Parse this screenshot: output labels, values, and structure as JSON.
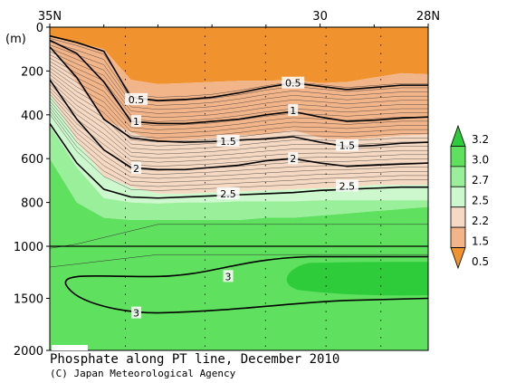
{
  "chart_data": {
    "type": "contour",
    "title": "Phosphate along PT line, December 2010",
    "credit": "(C) Japan Meteorological Agency",
    "y_unit": "(m)",
    "x_ticks": [
      {
        "label": "35N",
        "lat": 35
      },
      {
        "label": "30",
        "lat": 30
      },
      {
        "label": "28N",
        "lat": 28
      }
    ],
    "xlim": [
      35,
      28
    ],
    "y_ticks": [
      0,
      200,
      400,
      600,
      800,
      1000,
      1500,
      2000
    ],
    "ylim": [
      0,
      2000
    ],
    "axis_break_depth": 1000,
    "legend": {
      "placement": "right",
      "labels": [
        "3.2",
        "3.0",
        "2.7",
        "2.5",
        "2.2",
        "1.5",
        "0.5"
      ],
      "colors": [
        "#2ecc3a",
        "#5fe05f",
        "#9af09a",
        "#cdf7cd",
        "#f6d9c3",
        "#f2b58a",
        "#f0922e"
      ]
    },
    "contour_labels": [
      {
        "value": "0.5",
        "lat": 33.4,
        "depth": 330
      },
      {
        "value": "0.5",
        "lat": 30.5,
        "depth": 255
      },
      {
        "value": "1",
        "lat": 33.4,
        "depth": 430
      },
      {
        "value": "1",
        "lat": 30.5,
        "depth": 380
      },
      {
        "value": "1.5",
        "lat": 31.7,
        "depth": 520
      },
      {
        "value": "1.5",
        "lat": 29.5,
        "depth": 540
      },
      {
        "value": "2",
        "lat": 33.4,
        "depth": 645
      },
      {
        "value": "2",
        "lat": 30.5,
        "depth": 600
      },
      {
        "value": "2.5",
        "lat": 31.7,
        "depth": 760
      },
      {
        "value": "2.5",
        "lat": 29.5,
        "depth": 725
      },
      {
        "value": "3",
        "lat": 31.7,
        "depth": 1290
      },
      {
        "value": "3",
        "lat": 33.4,
        "depth": 1640
      }
    ],
    "fill_bands": [
      {
        "level": "0.5",
        "color": "#f0922e",
        "top": [
          0,
          0,
          0,
          0,
          0,
          0,
          0,
          0,
          0,
          0,
          0,
          0,
          0,
          0,
          0
        ],
        "bottom": [
          40,
          70,
          100,
          240,
          260,
          255,
          250,
          245,
          245,
          240,
          255,
          250,
          230,
          210,
          215
        ]
      },
      {
        "level": "1.5",
        "color": "#f2b58a",
        "bottom": [
          80,
          250,
          420,
          480,
          520,
          515,
          505,
          495,
          490,
          470,
          505,
          515,
          505,
          495,
          490
        ]
      },
      {
        "level": "2.2",
        "color": "#f6d9c3",
        "bottom": [
          300,
          520,
          680,
          730,
          760,
          760,
          755,
          750,
          745,
          740,
          735,
          730,
          720,
          720,
          720
        ]
      },
      {
        "level": "2.5",
        "color": "#cdf7cd",
        "bottom": [
          450,
          640,
          780,
          800,
          805,
          800,
          800,
          795,
          795,
          795,
          790,
          790,
          790,
          790,
          790
        ]
      },
      {
        "level": "2.7",
        "color": "#9af09a",
        "bottom": [
          600,
          800,
          870,
          880,
          880,
          880,
          880,
          880,
          870,
          870,
          860,
          850,
          840,
          830,
          820
        ]
      },
      {
        "level": "3.0",
        "color": "#5fe05f",
        "bottom": [
          2000,
          2000,
          2000,
          2000,
          2000,
          2000,
          2000,
          2000,
          2000,
          2000,
          2000,
          2000,
          2000,
          2000,
          2000
        ]
      }
    ],
    "high_region_level": "3.2",
    "high_region_color": "#2ecc3a",
    "contour_lines": [
      {
        "value": "0.5",
        "bold": true,
        "depths": [
          40,
          70,
          110,
          320,
          335,
          330,
          320,
          300,
          275,
          255,
          270,
          285,
          275,
          265,
          265
        ]
      },
      {
        "value": "1",
        "bold": true,
        "depths": [
          60,
          120,
          250,
          430,
          440,
          440,
          430,
          420,
          400,
          385,
          410,
          430,
          425,
          415,
          410
        ]
      },
      {
        "value": "1.5",
        "bold": true,
        "depths": [
          90,
          230,
          420,
          505,
          520,
          525,
          522,
          515,
          510,
          500,
          525,
          545,
          540,
          530,
          525
        ]
      },
      {
        "value": "2",
        "bold": true,
        "depths": [
          240,
          420,
          560,
          640,
          650,
          650,
          640,
          630,
          610,
          600,
          620,
          635,
          630,
          625,
          620
        ]
      },
      {
        "value": "2.5",
        "bold": true,
        "depths": [
          440,
          620,
          740,
          775,
          780,
          775,
          770,
          765,
          760,
          755,
          745,
          740,
          735,
          730,
          730
        ]
      }
    ]
  }
}
